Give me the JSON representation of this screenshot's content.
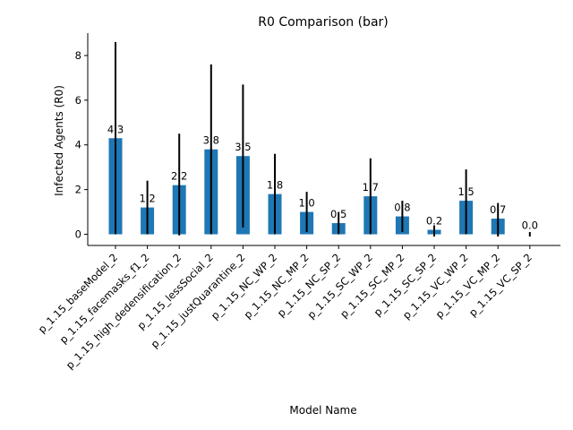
{
  "chart_data": {
    "type": "bar",
    "title": "R0 Comparison (bar)",
    "xlabel": "Model Name",
    "ylabel": "Infected Agents (R0)",
    "ylim": [
      -0.5,
      9.0
    ],
    "yticks": [
      0,
      2,
      4,
      6,
      8
    ],
    "grid": false,
    "categories": [
      "p_1.15_baseModel_2",
      "p_1.15_facemasks_f1_2",
      "p_1.15_high_dedensification_2",
      "p_1.15_lessSocial_2",
      "p_1.15_justQuarantine_2",
      "p_1.15_NC_WP_2",
      "p_1.15_NC_MP_2",
      "p_1.15_NC_SP_2",
      "p_1.15_SC_WP_2",
      "p_1.15_SC_MP_2",
      "p_1.15_SC_SP_2",
      "p_1.15_VC_WP_2",
      "p_1.15_VC_MP_2",
      "p_1.15_VC_SP_2"
    ],
    "values": [
      4.3,
      1.2,
      2.2,
      3.8,
      3.5,
      1.8,
      1.0,
      0.5,
      1.7,
      0.8,
      0.2,
      1.5,
      0.7,
      0.0
    ],
    "value_labels": [
      "4.3",
      "1.2",
      "2.2",
      "3.8",
      "3.5",
      "1.8",
      "1.0",
      "0.5",
      "1.7",
      "0.8",
      "0.2",
      "1.5",
      "0.7",
      "0.0"
    ],
    "error_low": [
      0.0,
      0.0,
      -0.05,
      0.0,
      0.3,
      0.0,
      0.1,
      0.0,
      0.0,
      0.1,
      -0.1,
      0.0,
      -0.1,
      -0.1
    ],
    "error_high": [
      8.6,
      2.4,
      4.5,
      7.6,
      6.7,
      3.6,
      1.9,
      1.0,
      3.4,
      1.5,
      0.4,
      2.9,
      1.4,
      0.1
    ],
    "bar_color": "#1f77b4",
    "error_color": "#000000"
  }
}
